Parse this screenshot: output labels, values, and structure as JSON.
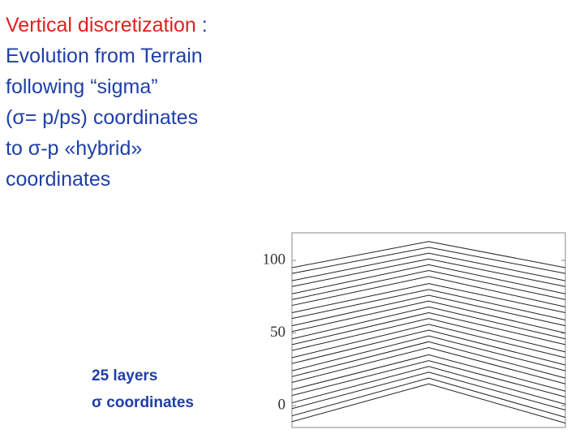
{
  "heading": "Vertical discretization",
  "separator": ":",
  "body_lines": [
    "Evolution from Terrain",
    "following “sigma”",
    "(σ= p/ps) coordinates",
    "to σ-p «hybrid»",
    "coordinates"
  ],
  "caption_lines": [
    "25 layers",
    "σ coordinates"
  ],
  "chart_data": {
    "type": "line",
    "categories": [
      null,
      null,
      null
    ],
    "ylim": [
      -15,
      119
    ],
    "yticks": [
      0,
      50,
      100
    ],
    "color": "#222",
    "series": [
      {
        "values": [
          -11,
          15,
          -12
        ]
      },
      {
        "values": [
          -7,
          19,
          -8
        ]
      },
      {
        "values": [
          -2,
          23,
          -3
        ]
      },
      {
        "values": [
          2,
          27,
          1
        ]
      },
      {
        "values": [
          7,
          31,
          6
        ]
      },
      {
        "values": [
          11,
          35,
          10
        ]
      },
      {
        "values": [
          16,
          40,
          15
        ]
      },
      {
        "values": [
          20,
          44,
          19
        ]
      },
      {
        "values": [
          24,
          48,
          24
        ]
      },
      {
        "values": [
          29,
          52,
          28
        ]
      },
      {
        "values": [
          33,
          56,
          33
        ]
      },
      {
        "values": [
          38,
          60,
          37
        ]
      },
      {
        "values": [
          42,
          64,
          42
        ]
      },
      {
        "values": [
          46,
          68,
          46
        ]
      },
      {
        "values": [
          51,
          72,
          50
        ]
      },
      {
        "values": [
          55,
          76,
          55
        ]
      },
      {
        "values": [
          60,
          80,
          59
        ]
      },
      {
        "values": [
          64,
          84,
          64
        ]
      },
      {
        "values": [
          69,
          89,
          68
        ]
      },
      {
        "values": [
          73,
          93,
          73
        ]
      },
      {
        "values": [
          77,
          97,
          77
        ]
      },
      {
        "values": [
          82,
          101,
          82
        ]
      },
      {
        "values": [
          86,
          105,
          86
        ]
      },
      {
        "values": [
          91,
          109,
          91
        ]
      },
      {
        "values": [
          95,
          113,
          95
        ]
      }
    ]
  }
}
